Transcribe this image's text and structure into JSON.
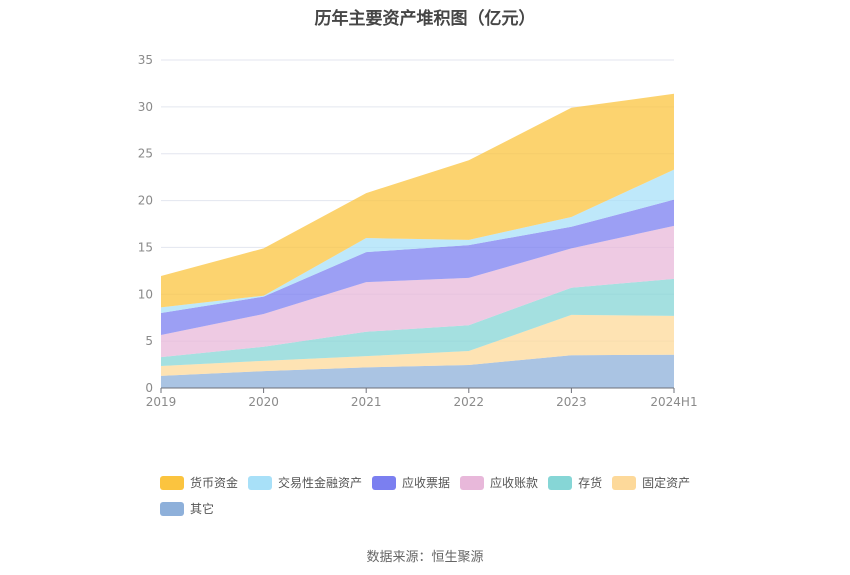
{
  "chart_data": {
    "type": "area",
    "stacked": true,
    "title": "历年主要资产堆积图（亿元）",
    "xlabel": "",
    "ylabel": "",
    "categories": [
      "2019",
      "2020",
      "2021",
      "2022",
      "2023",
      "2024H1"
    ],
    "ylim": [
      0,
      35
    ],
    "yticks": [
      0,
      5,
      10,
      15,
      20,
      25,
      30,
      35
    ],
    "grid": true,
    "legend_position": "bottom",
    "series": [
      {
        "name": "其它",
        "color": "#8eb0da",
        "values": [
          1.3,
          1.8,
          2.2,
          2.45,
          3.5,
          3.55
        ]
      },
      {
        "name": "固定资产",
        "color": "#fdd99a",
        "values": [
          1.05,
          1.1,
          1.2,
          1.5,
          4.3,
          4.15
        ]
      },
      {
        "name": "存货",
        "color": "#86d6d6",
        "values": [
          0.95,
          1.5,
          2.6,
          2.75,
          2.9,
          3.95
        ]
      },
      {
        "name": "应收账款",
        "color": "#e8b8da",
        "values": [
          2.35,
          3.5,
          5.3,
          5.05,
          4.2,
          5.65
        ]
      },
      {
        "name": "应收票据",
        "color": "#7b7ff0",
        "values": [
          2.35,
          1.85,
          3.2,
          3.5,
          2.3,
          2.8
        ]
      },
      {
        "name": "交易性金融资产",
        "color": "#a8e0f8",
        "values": [
          0.6,
          0.1,
          1.5,
          0.55,
          1.05,
          3.2
        ]
      },
      {
        "name": "货币资金",
        "color": "#fbc43f",
        "values": [
          3.35,
          5.05,
          4.8,
          8.5,
          11.65,
          8.1
        ]
      }
    ],
    "legend_order": [
      "货币资金",
      "交易性金融资产",
      "应收票据",
      "应收账款",
      "存货",
      "固定资产",
      "其它"
    ]
  },
  "source": "数据来源：恒生聚源"
}
